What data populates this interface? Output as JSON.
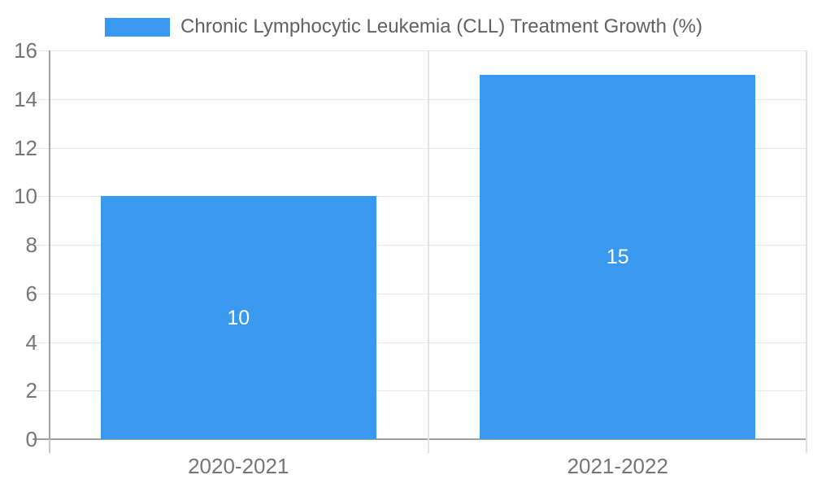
{
  "legend": {
    "label": "Chronic Lymphocytic Leukemia (CLL) Treatment Growth (%)"
  },
  "chart_data": {
    "type": "bar",
    "title": "Chronic Lymphocytic Leukemia (CLL) Treatment Growth (%)",
    "categories": [
      "2020-2021",
      "2021-2022"
    ],
    "values": [
      10,
      15
    ],
    "bar_value_labels": [
      "10",
      "15"
    ],
    "xlabel": "",
    "ylabel": "",
    "ylim": [
      0,
      16
    ],
    "yticks": [
      0,
      2,
      4,
      6,
      8,
      10,
      12,
      14,
      16
    ],
    "grid": true,
    "legend_position": "top",
    "value_labels_position": "inside-center",
    "colors": {
      "bar": "#3999EE",
      "grid": "#E6E6E6",
      "grid_vertical": "#E3E3E3",
      "axis": "#A0A0A0",
      "axis_tick_below": "#C6C6C6",
      "tick_label": "#757575",
      "legend_text": "#616161",
      "bar_label": "#FFFFFF",
      "background": "#FFFFFF"
    }
  }
}
